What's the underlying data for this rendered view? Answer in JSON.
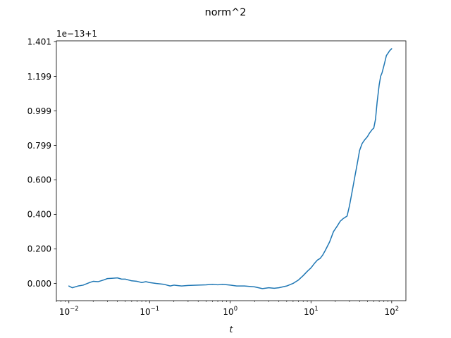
{
  "chart_data": {
    "type": "line",
    "title": "norm^2",
    "xlabel": "t",
    "ylabel": "",
    "offset_text": "1e−13+1",
    "xscale": "log",
    "xlim": [
      0.007,
      150
    ],
    "ylim": [
      -0.1,
      1.405
    ],
    "grid": false,
    "x_ticks": [
      {
        "value": 0.01,
        "base": "10",
        "exp": "−2"
      },
      {
        "value": 0.1,
        "base": "10",
        "exp": "−1"
      },
      {
        "value": 1,
        "base": "10",
        "exp": "0"
      },
      {
        "value": 10,
        "base": "10",
        "exp": "1"
      },
      {
        "value": 100,
        "base": "10",
        "exp": "2"
      }
    ],
    "y_ticks": [
      {
        "value": 0.0,
        "label": "0.000"
      },
      {
        "value": 0.2,
        "label": "0.200"
      },
      {
        "value": 0.4,
        "label": "0.400"
      },
      {
        "value": 0.6,
        "label": "0.600"
      },
      {
        "value": 0.799,
        "label": "0.799"
      },
      {
        "value": 0.999,
        "label": "0.999"
      },
      {
        "value": 1.199,
        "label": "1.199"
      },
      {
        "value": 1.401,
        "label": "1.401"
      }
    ],
    "series": [
      {
        "color": "#1f77b4",
        "x": [
          0.01,
          0.011,
          0.013,
          0.015,
          0.018,
          0.02,
          0.023,
          0.027,
          0.03,
          0.035,
          0.04,
          0.045,
          0.05,
          0.06,
          0.07,
          0.08,
          0.09,
          0.1,
          0.12,
          0.15,
          0.18,
          0.2,
          0.25,
          0.3,
          0.4,
          0.5,
          0.6,
          0.7,
          0.8,
          1.0,
          1.2,
          1.5,
          2.0,
          2.5,
          3.0,
          3.5,
          4.0,
          5.0,
          6.0,
          7.0,
          8.0,
          9.0,
          10.0,
          11.0,
          12.0,
          13.0,
          14.0,
          15.0,
          17.0,
          19.0,
          21.0,
          23.0,
          25.0,
          28.0,
          30.0,
          32.0,
          35.0,
          38.0,
          40.0,
          43.0,
          46.0,
          50.0,
          53.0,
          57.0,
          60.0,
          63.0,
          66.0,
          70.0,
          73.0,
          76.0,
          80.0,
          83.0,
          86.0,
          89.0,
          92.0,
          95.0,
          98.0,
          100.0
        ],
        "y": [
          -0.015,
          -0.025,
          -0.015,
          -0.01,
          0.005,
          0.012,
          0.01,
          0.02,
          0.028,
          0.03,
          0.032,
          0.025,
          0.025,
          0.015,
          0.012,
          0.005,
          0.01,
          0.005,
          0.0,
          -0.005,
          -0.015,
          -0.01,
          -0.015,
          -0.012,
          -0.01,
          -0.008,
          -0.005,
          -0.008,
          -0.005,
          -0.01,
          -0.015,
          -0.015,
          -0.02,
          -0.03,
          -0.025,
          -0.028,
          -0.025,
          -0.015,
          0.0,
          0.02,
          0.045,
          0.07,
          0.09,
          0.115,
          0.135,
          0.145,
          0.165,
          0.19,
          0.24,
          0.3,
          0.33,
          0.36,
          0.375,
          0.39,
          0.45,
          0.52,
          0.62,
          0.71,
          0.77,
          0.81,
          0.83,
          0.85,
          0.87,
          0.89,
          0.9,
          0.95,
          1.05,
          1.15,
          1.2,
          1.22,
          1.26,
          1.29,
          1.32,
          1.33,
          1.34,
          1.35,
          1.355,
          1.36
        ]
      }
    ]
  }
}
